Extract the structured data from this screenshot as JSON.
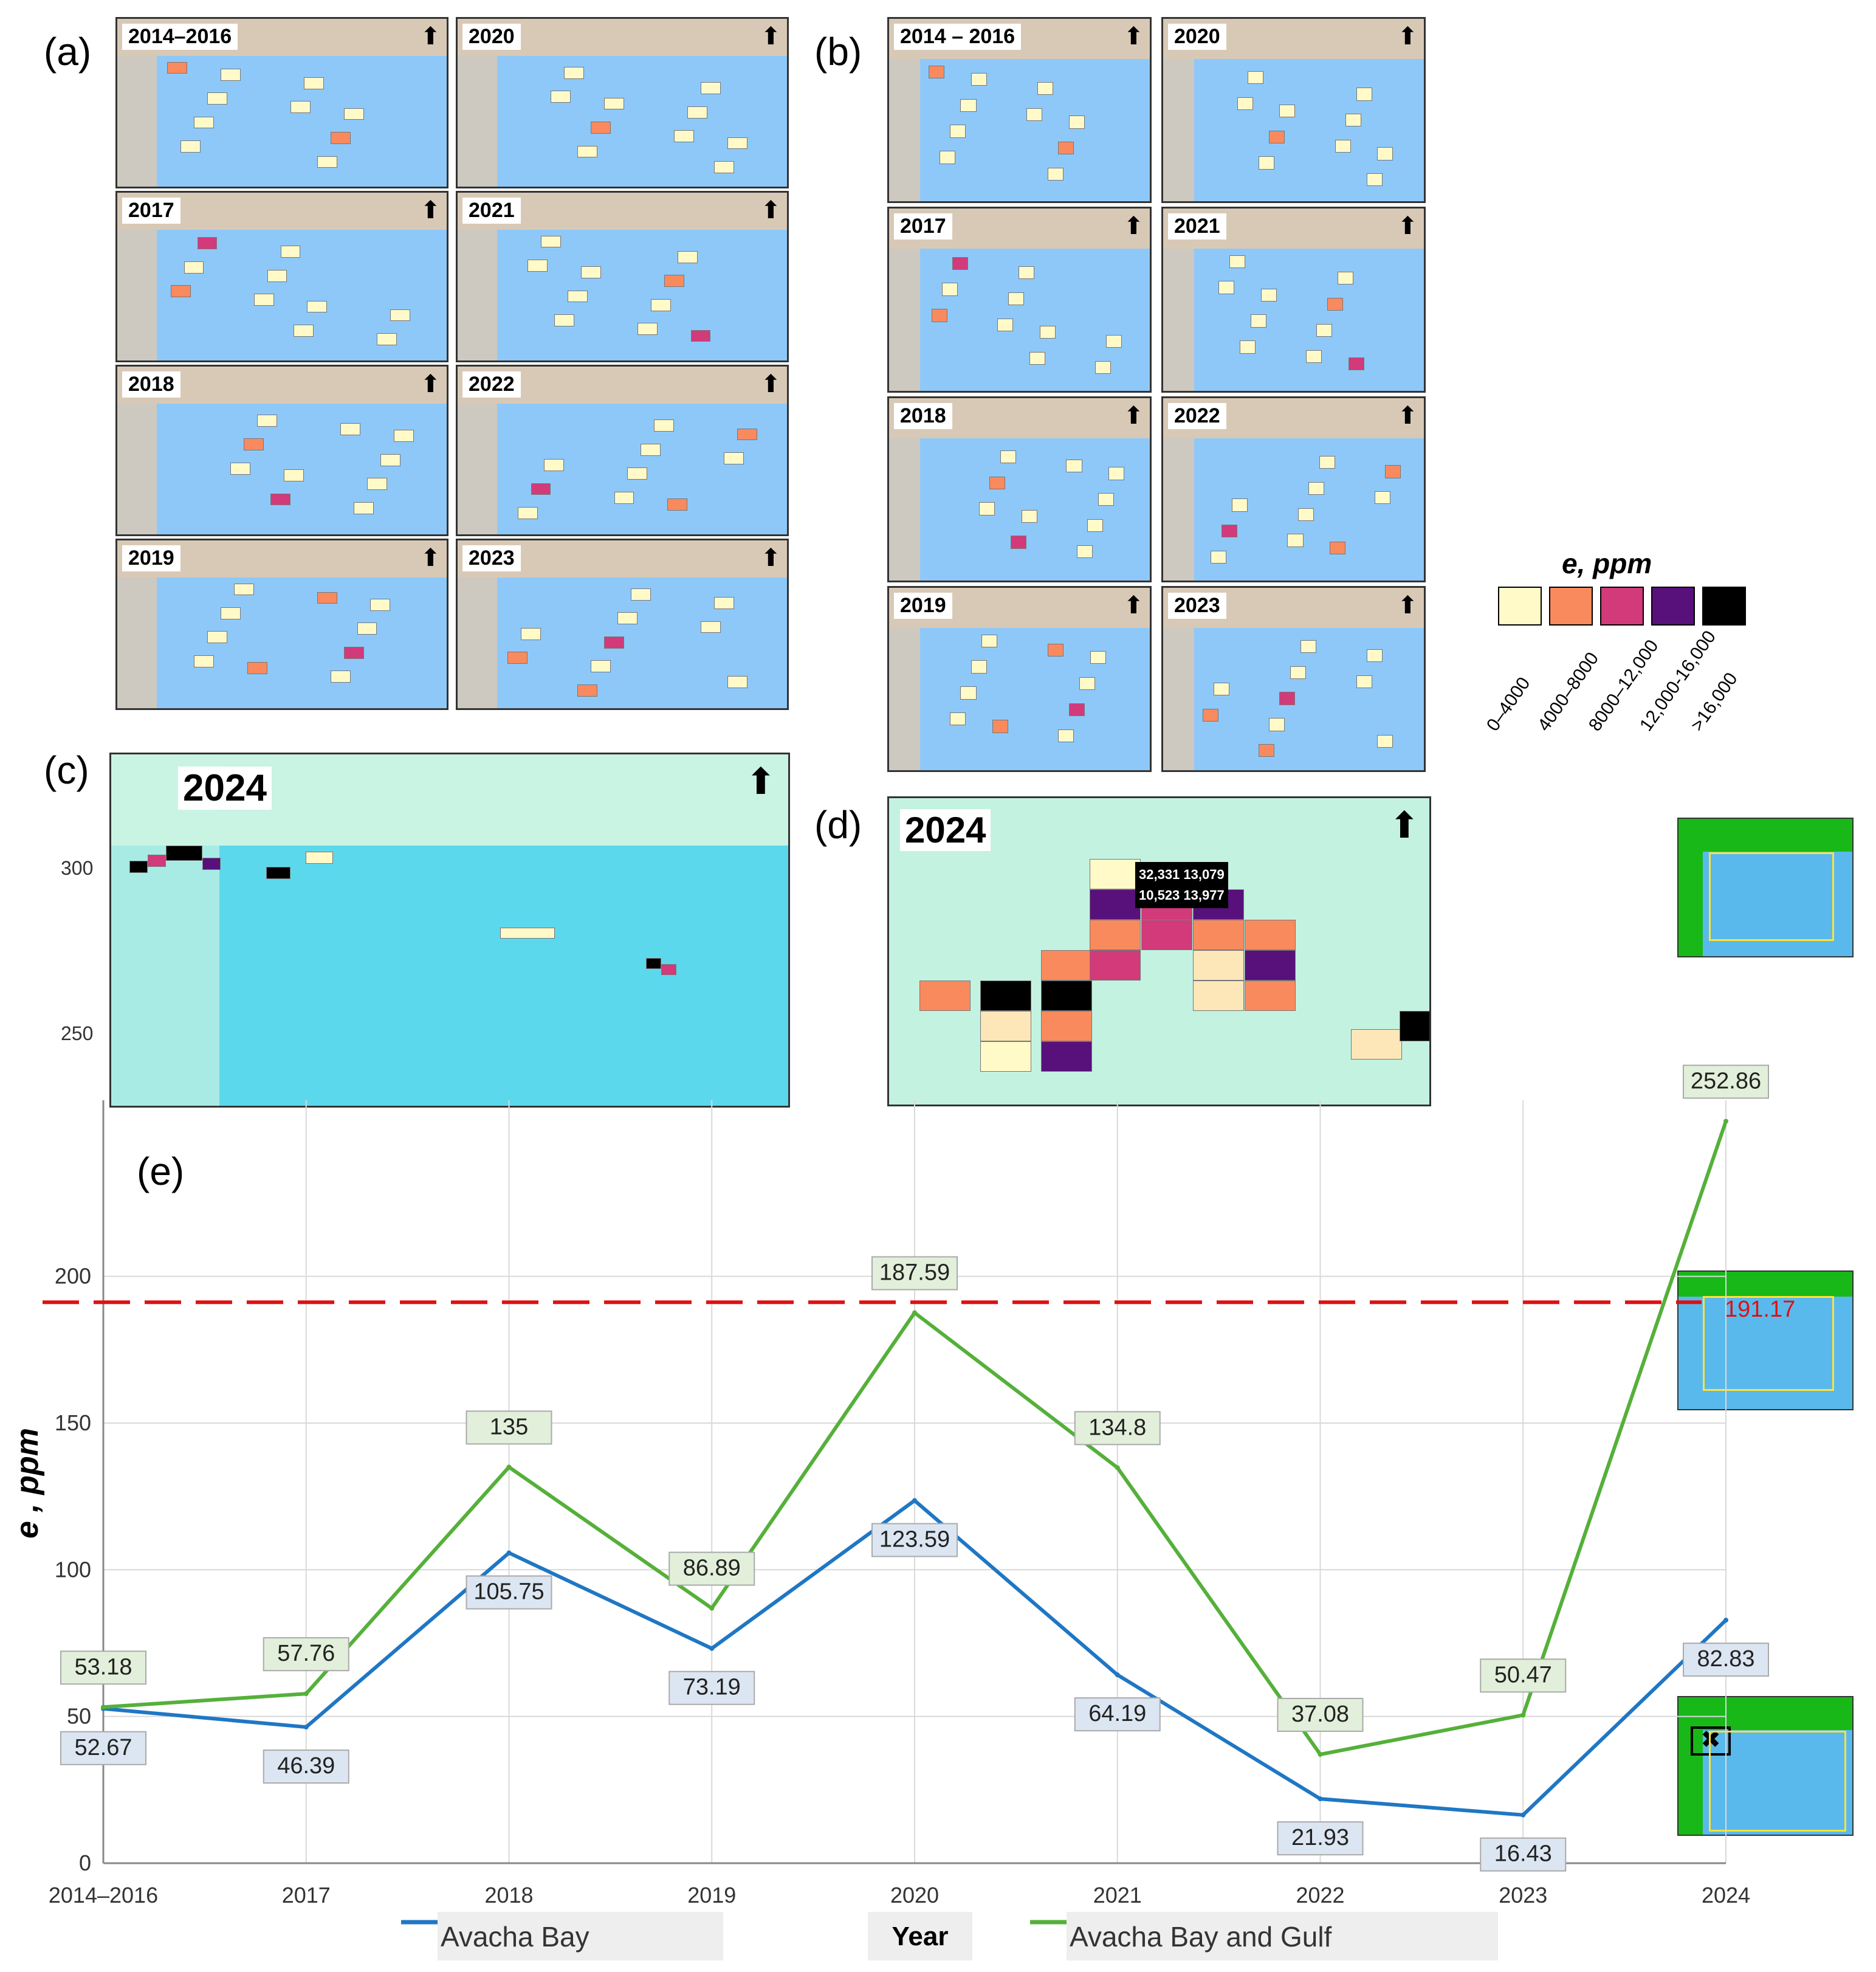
{
  "panels": {
    "a": "(a)",
    "b": "(b)",
    "c": "(c)",
    "d": "(d)",
    "e": "(e)"
  },
  "small_map_years": [
    "2014–2016",
    "2020",
    "2017",
    "2021",
    "2018",
    "2022",
    "2019",
    "2023"
  ],
  "small_map_years_b": [
    "2014 – 2016",
    "2020",
    "2017",
    "2021",
    "2018",
    "2022",
    "2019",
    "2023"
  ],
  "map_2024_label": "2024",
  "panel_c_ticks": [
    "300",
    "250"
  ],
  "panel_d_values": [
    "32,331",
    "13,079",
    "10,523",
    "13,977"
  ],
  "legend": {
    "title": "e, ppm",
    "items": [
      {
        "label": "0–4000",
        "color": "#fffac8"
      },
      {
        "label": "4000–8000",
        "color": "#f98a5e"
      },
      {
        "label": "8000–12,000",
        "color": "#d23a7a"
      },
      {
        "label": "12,000-16,000",
        "color": "#58107a"
      },
      {
        "label": ">16,000",
        "color": "#000000"
      }
    ]
  },
  "chart_data": {
    "type": "line",
    "categories": [
      "2014–2016",
      "2017",
      "2018",
      "2019",
      "2020",
      "2021",
      "2022",
      "2023",
      "2024"
    ],
    "series": [
      {
        "name": "Avacha Bay",
        "color": "#1f77c4",
        "values": [
          52.67,
          46.39,
          105.75,
          73.19,
          123.59,
          64.19,
          21.93,
          16.43,
          82.83
        ]
      },
      {
        "name": "Avacha Bay and Gulf",
        "color": "#55b03a",
        "values": [
          53.18,
          57.76,
          135,
          86.89,
          187.59,
          134.8,
          37.08,
          50.47,
          252.86
        ]
      }
    ],
    "threshold": {
      "value": 191.17,
      "label": "191.17",
      "color": "#e01010"
    },
    "xlabel": "Year",
    "ylabel": "e , ppm",
    "ylim": [
      0,
      260
    ],
    "yticks": [
      "0",
      "50",
      "100",
      "150",
      "200"
    ],
    "grid": true,
    "legend_position": "bottom"
  }
}
